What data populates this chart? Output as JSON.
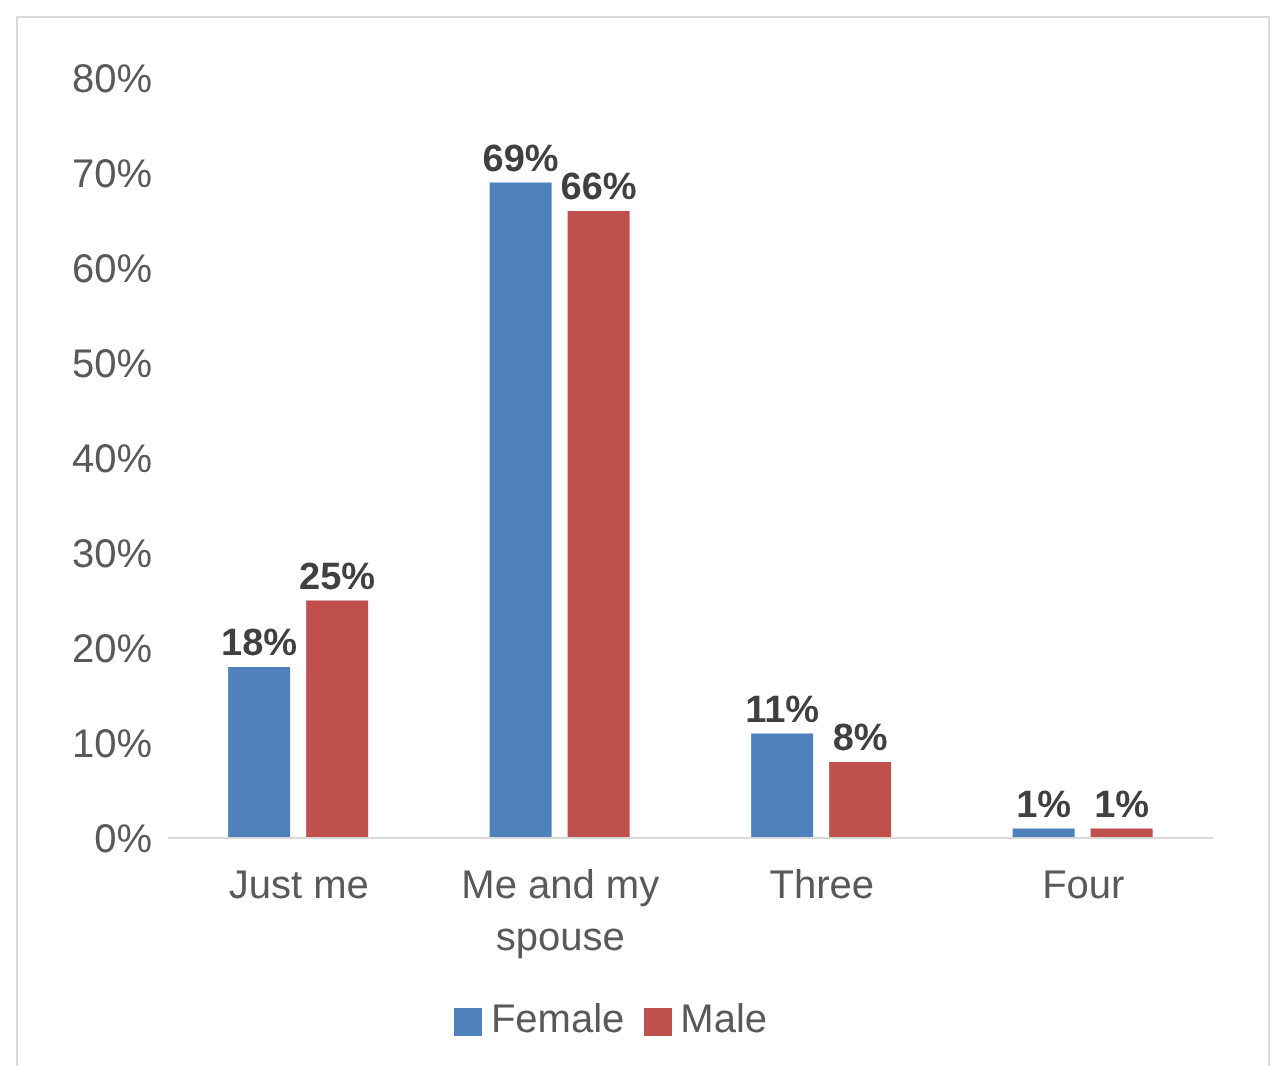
{
  "chart_data": {
    "type": "bar",
    "categories": [
      "Just me",
      "Me and my spouse",
      "Three",
      "Four"
    ],
    "series": [
      {
        "name": "Female",
        "color": "#4f81bd",
        "values": [
          18,
          69,
          11,
          1
        ],
        "value_labels": [
          "18%",
          "69%",
          "11%",
          "1%"
        ]
      },
      {
        "name": "Male",
        "color": "#c0504d",
        "values": [
          25,
          66,
          8,
          1
        ],
        "value_labels": [
          "25%",
          "66%",
          "8%",
          "1%"
        ]
      }
    ],
    "ylim": [
      0,
      80
    ],
    "yticks": [
      {
        "value": 0,
        "label": "0%"
      },
      {
        "value": 10,
        "label": "10%"
      },
      {
        "value": 20,
        "label": "20%"
      },
      {
        "value": 30,
        "label": "30%"
      },
      {
        "value": 40,
        "label": "40%"
      },
      {
        "value": 50,
        "label": "50%"
      },
      {
        "value": 60,
        "label": "60%"
      },
      {
        "value": 70,
        "label": "70%"
      },
      {
        "value": 80,
        "label": "80%"
      }
    ],
    "grid": false,
    "legend": "bottom"
  }
}
